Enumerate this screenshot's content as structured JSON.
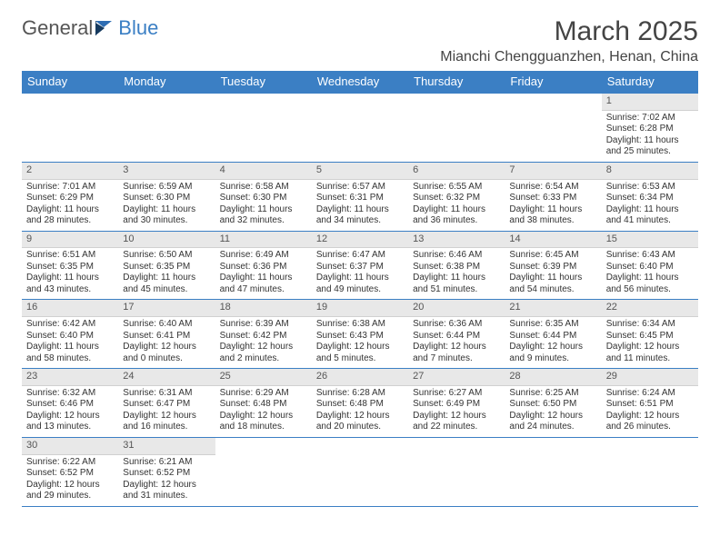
{
  "brand": {
    "part1": "General",
    "part2": "Blue"
  },
  "title": "March 2025",
  "location": "Mianchi Chengguanzhen, Henan, China",
  "colors": {
    "header_bg": "#3b7fc4",
    "header_text": "#ffffff",
    "daynum_bg": "#e8e8e8",
    "border": "#3b7fc4",
    "body_text": "#333333",
    "background": "#ffffff"
  },
  "typography": {
    "title_fontsize": 30,
    "location_fontsize": 16,
    "dayhead_fontsize": 13,
    "cell_fontsize": 10
  },
  "day_headers": [
    "Sunday",
    "Monday",
    "Tuesday",
    "Wednesday",
    "Thursday",
    "Friday",
    "Saturday"
  ],
  "weeks": [
    [
      null,
      null,
      null,
      null,
      null,
      null,
      {
        "n": "1",
        "sunrise": "Sunrise: 7:02 AM",
        "sunset": "Sunset: 6:28 PM",
        "daylight": "Daylight: 11 hours and 25 minutes."
      }
    ],
    [
      {
        "n": "2",
        "sunrise": "Sunrise: 7:01 AM",
        "sunset": "Sunset: 6:29 PM",
        "daylight": "Daylight: 11 hours and 28 minutes."
      },
      {
        "n": "3",
        "sunrise": "Sunrise: 6:59 AM",
        "sunset": "Sunset: 6:30 PM",
        "daylight": "Daylight: 11 hours and 30 minutes."
      },
      {
        "n": "4",
        "sunrise": "Sunrise: 6:58 AM",
        "sunset": "Sunset: 6:30 PM",
        "daylight": "Daylight: 11 hours and 32 minutes."
      },
      {
        "n": "5",
        "sunrise": "Sunrise: 6:57 AM",
        "sunset": "Sunset: 6:31 PM",
        "daylight": "Daylight: 11 hours and 34 minutes."
      },
      {
        "n": "6",
        "sunrise": "Sunrise: 6:55 AM",
        "sunset": "Sunset: 6:32 PM",
        "daylight": "Daylight: 11 hours and 36 minutes."
      },
      {
        "n": "7",
        "sunrise": "Sunrise: 6:54 AM",
        "sunset": "Sunset: 6:33 PM",
        "daylight": "Daylight: 11 hours and 38 minutes."
      },
      {
        "n": "8",
        "sunrise": "Sunrise: 6:53 AM",
        "sunset": "Sunset: 6:34 PM",
        "daylight": "Daylight: 11 hours and 41 minutes."
      }
    ],
    [
      {
        "n": "9",
        "sunrise": "Sunrise: 6:51 AM",
        "sunset": "Sunset: 6:35 PM",
        "daylight": "Daylight: 11 hours and 43 minutes."
      },
      {
        "n": "10",
        "sunrise": "Sunrise: 6:50 AM",
        "sunset": "Sunset: 6:35 PM",
        "daylight": "Daylight: 11 hours and 45 minutes."
      },
      {
        "n": "11",
        "sunrise": "Sunrise: 6:49 AM",
        "sunset": "Sunset: 6:36 PM",
        "daylight": "Daylight: 11 hours and 47 minutes."
      },
      {
        "n": "12",
        "sunrise": "Sunrise: 6:47 AM",
        "sunset": "Sunset: 6:37 PM",
        "daylight": "Daylight: 11 hours and 49 minutes."
      },
      {
        "n": "13",
        "sunrise": "Sunrise: 6:46 AM",
        "sunset": "Sunset: 6:38 PM",
        "daylight": "Daylight: 11 hours and 51 minutes."
      },
      {
        "n": "14",
        "sunrise": "Sunrise: 6:45 AM",
        "sunset": "Sunset: 6:39 PM",
        "daylight": "Daylight: 11 hours and 54 minutes."
      },
      {
        "n": "15",
        "sunrise": "Sunrise: 6:43 AM",
        "sunset": "Sunset: 6:40 PM",
        "daylight": "Daylight: 11 hours and 56 minutes."
      }
    ],
    [
      {
        "n": "16",
        "sunrise": "Sunrise: 6:42 AM",
        "sunset": "Sunset: 6:40 PM",
        "daylight": "Daylight: 11 hours and 58 minutes."
      },
      {
        "n": "17",
        "sunrise": "Sunrise: 6:40 AM",
        "sunset": "Sunset: 6:41 PM",
        "daylight": "Daylight: 12 hours and 0 minutes."
      },
      {
        "n": "18",
        "sunrise": "Sunrise: 6:39 AM",
        "sunset": "Sunset: 6:42 PM",
        "daylight": "Daylight: 12 hours and 2 minutes."
      },
      {
        "n": "19",
        "sunrise": "Sunrise: 6:38 AM",
        "sunset": "Sunset: 6:43 PM",
        "daylight": "Daylight: 12 hours and 5 minutes."
      },
      {
        "n": "20",
        "sunrise": "Sunrise: 6:36 AM",
        "sunset": "Sunset: 6:44 PM",
        "daylight": "Daylight: 12 hours and 7 minutes."
      },
      {
        "n": "21",
        "sunrise": "Sunrise: 6:35 AM",
        "sunset": "Sunset: 6:44 PM",
        "daylight": "Daylight: 12 hours and 9 minutes."
      },
      {
        "n": "22",
        "sunrise": "Sunrise: 6:34 AM",
        "sunset": "Sunset: 6:45 PM",
        "daylight": "Daylight: 12 hours and 11 minutes."
      }
    ],
    [
      {
        "n": "23",
        "sunrise": "Sunrise: 6:32 AM",
        "sunset": "Sunset: 6:46 PM",
        "daylight": "Daylight: 12 hours and 13 minutes."
      },
      {
        "n": "24",
        "sunrise": "Sunrise: 6:31 AM",
        "sunset": "Sunset: 6:47 PM",
        "daylight": "Daylight: 12 hours and 16 minutes."
      },
      {
        "n": "25",
        "sunrise": "Sunrise: 6:29 AM",
        "sunset": "Sunset: 6:48 PM",
        "daylight": "Daylight: 12 hours and 18 minutes."
      },
      {
        "n": "26",
        "sunrise": "Sunrise: 6:28 AM",
        "sunset": "Sunset: 6:48 PM",
        "daylight": "Daylight: 12 hours and 20 minutes."
      },
      {
        "n": "27",
        "sunrise": "Sunrise: 6:27 AM",
        "sunset": "Sunset: 6:49 PM",
        "daylight": "Daylight: 12 hours and 22 minutes."
      },
      {
        "n": "28",
        "sunrise": "Sunrise: 6:25 AM",
        "sunset": "Sunset: 6:50 PM",
        "daylight": "Daylight: 12 hours and 24 minutes."
      },
      {
        "n": "29",
        "sunrise": "Sunrise: 6:24 AM",
        "sunset": "Sunset: 6:51 PM",
        "daylight": "Daylight: 12 hours and 26 minutes."
      }
    ],
    [
      {
        "n": "30",
        "sunrise": "Sunrise: 6:22 AM",
        "sunset": "Sunset: 6:52 PM",
        "daylight": "Daylight: 12 hours and 29 minutes."
      },
      {
        "n": "31",
        "sunrise": "Sunrise: 6:21 AM",
        "sunset": "Sunset: 6:52 PM",
        "daylight": "Daylight: 12 hours and 31 minutes."
      },
      null,
      null,
      null,
      null,
      null
    ]
  ]
}
